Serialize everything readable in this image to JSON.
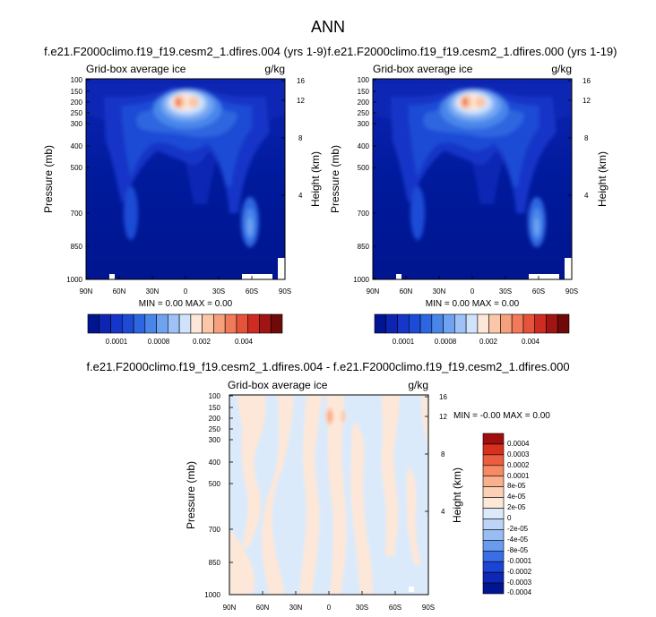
{
  "title": "ANN",
  "colors": {
    "abs_levels": [
      "#00158f",
      "#0e25b3",
      "#1536c8",
      "#1d4bd6",
      "#2d66e0",
      "#4a86ea",
      "#6fa3f2",
      "#9ec2f7",
      "#cfe3fb",
      "#fde7d8",
      "#fbc7a8",
      "#f7a07c",
      "#f07a59",
      "#e5533a",
      "#cf2b22",
      "#a01414",
      "#6e0a0a"
    ],
    "diff_levels": [
      "#00158f",
      "#0d27b6",
      "#1b44d6",
      "#3a6ee6",
      "#6a9cee",
      "#97bdf3",
      "#bcd5f7",
      "#dbeafb",
      "#fde7d8",
      "#fcd0b5",
      "#f9b08c",
      "#f58a65",
      "#ec5c3f",
      "#d6301f",
      "#a10e0e"
    ]
  },
  "chart_data": [
    {
      "type": "heatmap",
      "id": "left",
      "title": "f.e21.F2000climo.f19_f19.cesm2_1.dfires.004 (yrs 1-9)",
      "left_label": "Grid-box average ice",
      "right_label": "g/kg",
      "ylabel": "Pressure (mb)",
      "y2label": "Height (km)",
      "x_ticks": [
        "90N",
        "60N",
        "30N",
        "0",
        "30S",
        "60S",
        "90S"
      ],
      "y_ticks": [
        "100",
        "150",
        "200",
        "250",
        "300",
        "400",
        "500",
        "700",
        "850",
        "1000"
      ],
      "y2_ticks": [
        "16",
        "12",
        "8",
        "4"
      ],
      "min_text": "MIN =  0.00  MAX =  0.00",
      "colorbar_ticks": [
        "0.0001",
        "0.0008",
        "0.002",
        "0.004"
      ]
    },
    {
      "type": "heatmap",
      "id": "right",
      "title": "f.e21.F2000climo.f19_f19.cesm2_1.dfires.000 (yrs 1-19)",
      "left_label": "Grid-box average ice",
      "right_label": "g/kg",
      "ylabel": "Pressure (mb)",
      "y2label": "Height (km)",
      "x_ticks": [
        "90N",
        "60N",
        "30N",
        "0",
        "30S",
        "60S",
        "90S"
      ],
      "y_ticks": [
        "100",
        "150",
        "200",
        "250",
        "300",
        "400",
        "500",
        "700",
        "850",
        "1000"
      ],
      "y2_ticks": [
        "16",
        "12",
        "8",
        "4"
      ],
      "min_text": "MIN =  0.00  MAX =  0.00",
      "colorbar_ticks": [
        "0.0001",
        "0.0008",
        "0.002",
        "0.004"
      ]
    },
    {
      "type": "heatmap",
      "id": "diff",
      "title": "f.e21.F2000climo.f19_f19.cesm2_1.dfires.004 - f.e21.F2000climo.f19_f19.cesm2_1.dfires.000",
      "left_label": "Grid-box average ice",
      "right_label": "g/kg",
      "ylabel": "Pressure (mb)",
      "y2label": "Height (km)",
      "x_ticks": [
        "90N",
        "60N",
        "30N",
        "0",
        "30S",
        "60S",
        "90S"
      ],
      "y_ticks": [
        "100",
        "150",
        "200",
        "250",
        "300",
        "400",
        "500",
        "700",
        "850",
        "1000"
      ],
      "y2_ticks": [
        "16",
        "12",
        "8",
        "4"
      ],
      "min_text": "MIN = -0.00  MAX =  0.00",
      "colorbar_ticks": [
        "0.0004",
        "0.0003",
        "0.0002",
        "0.0001",
        "8e-05",
        "4e-05",
        "2e-05",
        "0",
        "-2e-05",
        "-4e-05",
        "-8e-05",
        "-0.0001",
        "-0.0002",
        "-0.0003",
        "-0.0004"
      ]
    }
  ]
}
